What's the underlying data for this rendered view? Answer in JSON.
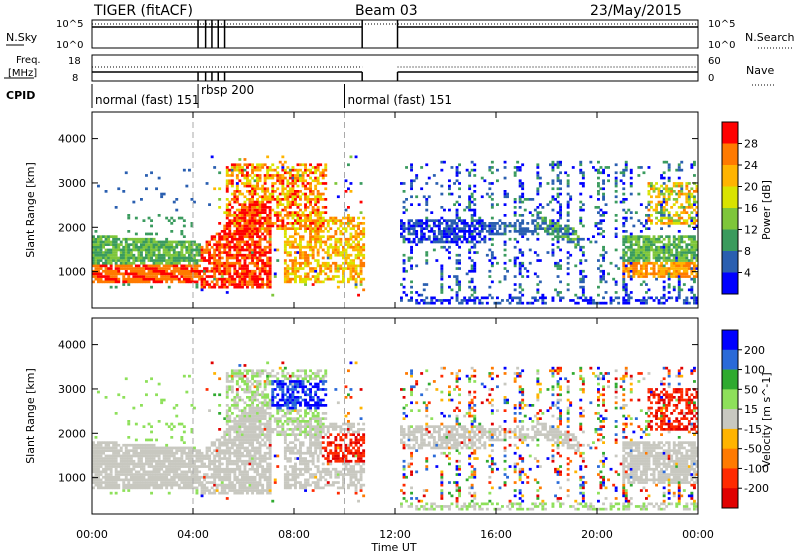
{
  "header": {
    "radar": "TIGER (fitACF)",
    "beam": "Beam 03",
    "date": "23/May/2015"
  },
  "panels": {
    "nsky_label": "N.Sky",
    "nsearch_label": "N.Search",
    "freq_label_1": "Freq.",
    "freq_label_2": "[MHz]",
    "nave_label": "Nave",
    "cpid_label": "CPID",
    "nsky_ticks": [
      "10^5",
      "10^0"
    ],
    "nsearch_ticks": [
      "10^5",
      "10^0"
    ],
    "freq_ticks": [
      "18",
      "8"
    ],
    "nave_ticks": [
      "60",
      "0"
    ]
  },
  "cpid_modes": [
    {
      "label": "normal (fast) 151",
      "start": 0.0
    },
    {
      "label": "rbsp 200",
      "start": 4.2
    },
    {
      "label": "normal (fast) 151",
      "start": 10.0
    }
  ],
  "chart_data": [
    {
      "type": "heatmap",
      "name": "power",
      "xlabel": "",
      "ylabel": "Slant Range [km]",
      "xlim": [
        0,
        24
      ],
      "ylim": [
        180,
        4600
      ],
      "yticks": [
        "1000",
        "2000",
        "3000",
        "4000"
      ],
      "colorbar": {
        "label": "Power [dB]",
        "ticks": [
          "28",
          "24",
          "20",
          "16",
          "12",
          "8",
          "4"
        ],
        "colors": [
          "#ff0000",
          "#ff7a00",
          "#ffb400",
          "#d9e300",
          "#7ec63a",
          "#3a9b5e",
          "#2a5fb0",
          "#0000ff"
        ]
      }
    },
    {
      "type": "heatmap",
      "name": "velocity",
      "xlabel": "Time UT",
      "ylabel": "Slant Range [km]",
      "xlim": [
        0,
        24
      ],
      "ylim": [
        180,
        4600
      ],
      "xticks": [
        "00:00",
        "04:00",
        "08:00",
        "12:00",
        "16:00",
        "20:00",
        "00:00"
      ],
      "yticks": [
        "1000",
        "2000",
        "3000",
        "4000"
      ],
      "colorbar": {
        "label": "Velocity [m s^-1]",
        "ticks": [
          "200",
          "100",
          "50",
          "15",
          "-15",
          "-50",
          "-100",
          "-200"
        ],
        "colors": [
          "#0000ff",
          "#2a6ad8",
          "#2faa2f",
          "#8ee05a",
          "#c8c8c0",
          "#ffb400",
          "#ff7a00",
          "#ff2a00",
          "#e00000"
        ]
      }
    }
  ]
}
